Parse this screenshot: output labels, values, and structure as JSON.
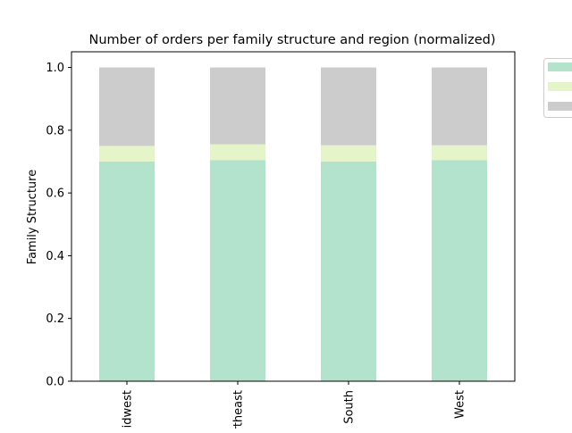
{
  "chart_data": {
    "type": "bar",
    "stacked": true,
    "title": "Number of orders per family structure and region (normalized)",
    "xlabel": "",
    "ylabel": "Family Structure",
    "ylim": [
      0,
      1.05
    ],
    "yticks": [
      "0.0",
      "0.2",
      "0.4",
      "0.6",
      "0.8",
      "1.0"
    ],
    "ytick_values": [
      0,
      0.2,
      0.4,
      0.6,
      0.8,
      1.0
    ],
    "categories": [
      "Midwest",
      "Northeast",
      "South",
      "West"
    ],
    "series": [
      {
        "name": "",
        "color": "#b3e2cd",
        "values": [
          0.7,
          0.705,
          0.7,
          0.705
        ]
      },
      {
        "name": "",
        "color": "#e6f5c9",
        "values": [
          0.05,
          0.05,
          0.052,
          0.047
        ]
      },
      {
        "name": "",
        "color": "#cccccc",
        "values": [
          0.25,
          0.245,
          0.248,
          0.248
        ]
      }
    ],
    "legend_placement": "outside-top-right",
    "grid": false
  }
}
